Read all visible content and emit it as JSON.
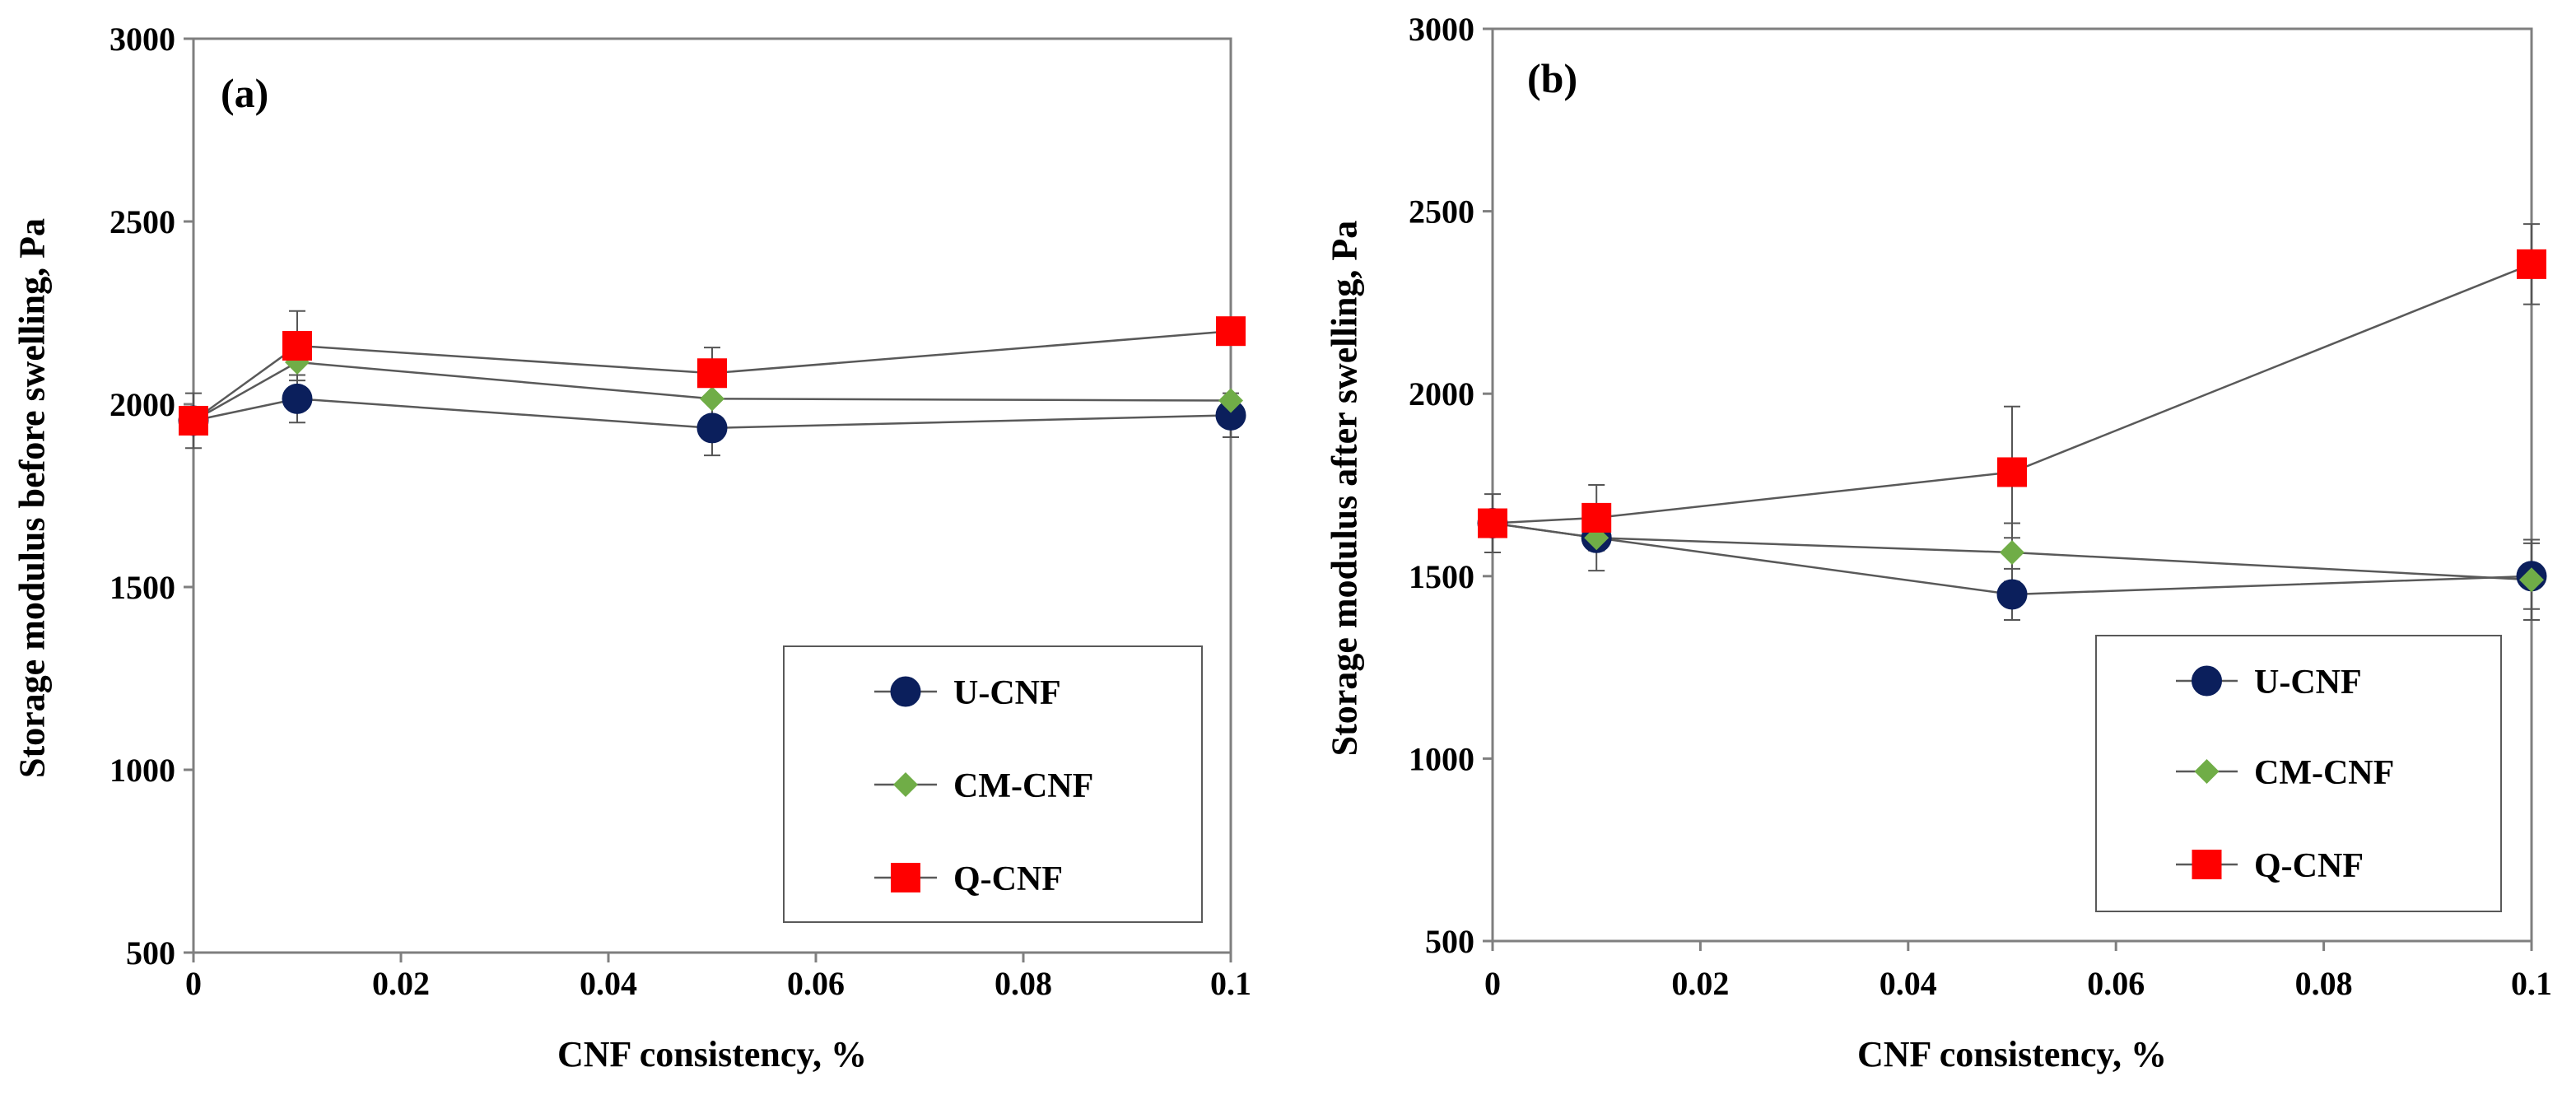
{
  "chart_data": [
    {
      "type": "line",
      "panel_label": "(a)",
      "xlabel": "CNF consistency, %",
      "ylabel": "Storage modulus before swelling, Pa",
      "xlim": [
        0,
        0.1
      ],
      "ylim": [
        500,
        3000
      ],
      "xticks": [
        0,
        0.02,
        0.04,
        0.06,
        0.08,
        0.1
      ],
      "xtick_labels": [
        "0",
        "0.02",
        "0.04",
        "0.06",
        "0.08",
        "0.1"
      ],
      "yticks": [
        500,
        1000,
        1500,
        2000,
        2500,
        3000
      ],
      "ytick_labels": [
        "500",
        "1000",
        "1500",
        "2000",
        "2500",
        "3000"
      ],
      "legend_position": "bottom-right",
      "x": [
        0,
        0.01,
        0.05,
        0.1
      ],
      "series": [
        {
          "name": "U-CNF",
          "marker": "circle",
          "color": "#0b1f5c",
          "values": [
            1955,
            2015,
            1935,
            1970
          ],
          "errors": [
            0,
            65,
            75,
            60
          ]
        },
        {
          "name": "CM-CNF",
          "marker": "diamond",
          "color": "#70ad47",
          "values": [
            1955,
            2115,
            2015,
            2010
          ],
          "errors": [
            0,
            0,
            0,
            0
          ]
        },
        {
          "name": "Q-CNF",
          "marker": "square",
          "color": "#ff0000",
          "values": [
            1955,
            2160,
            2085,
            2200
          ],
          "errors": [
            75,
            95,
            70,
            0
          ]
        }
      ]
    },
    {
      "type": "line",
      "panel_label": "(b)",
      "xlabel": "CNF consistency, %",
      "ylabel": "Storage modulus after  swelling, Pa",
      "xlim": [
        0,
        0.1
      ],
      "ylim": [
        500,
        3000
      ],
      "xticks": [
        0,
        0.02,
        0.04,
        0.06,
        0.08,
        0.1
      ],
      "xtick_labels": [
        "0",
        "0.02",
        "0.04",
        "0.06",
        "0.08",
        "0.1"
      ],
      "yticks": [
        500,
        1000,
        1500,
        2000,
        2500,
        3000
      ],
      "ytick_labels": [
        "500",
        "1000",
        "1500",
        "2000",
        "2500",
        "3000"
      ],
      "legend_position": "bottom-right",
      "x": [
        0,
        0.01,
        0.05,
        0.1
      ],
      "series": [
        {
          "name": "U-CNF",
          "marker": "circle",
          "color": "#0b1f5c",
          "values": [
            1645,
            1605,
            1450,
            1500
          ],
          "errors": [
            0,
            90,
            70,
            90
          ]
        },
        {
          "name": "CM-CNF",
          "marker": "diamond",
          "color": "#70ad47",
          "values": [
            1645,
            1605,
            1565,
            1490
          ],
          "errors": [
            0,
            0,
            80,
            110
          ]
        },
        {
          "name": "Q-CNF",
          "marker": "square",
          "color": "#ff0000",
          "values": [
            1645,
            1660,
            1785,
            2355
          ],
          "errors": [
            80,
            90,
            180,
            110
          ]
        }
      ]
    }
  ]
}
